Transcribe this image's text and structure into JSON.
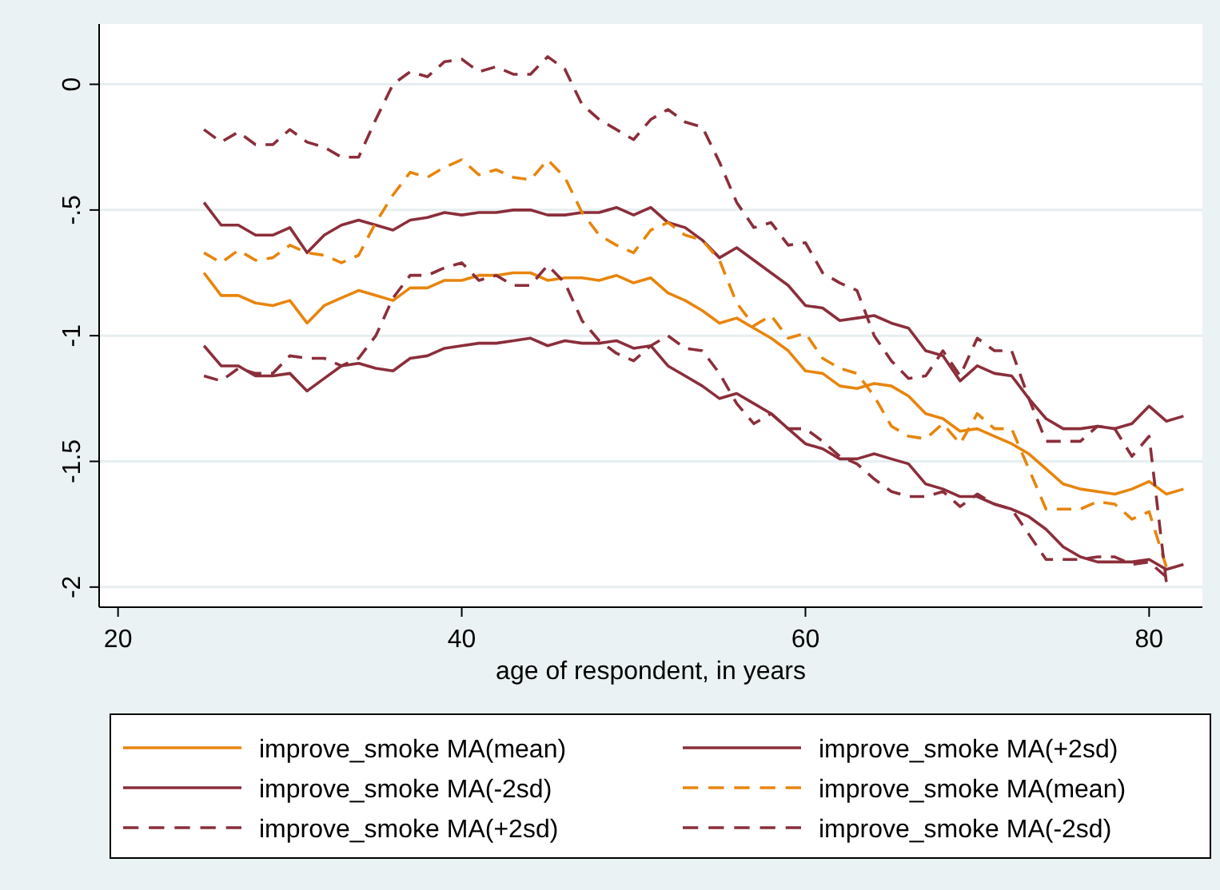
{
  "chart_data": {
    "type": "line",
    "xlabel": "age of respondent, in years",
    "xlim": [
      18.9,
      83.1
    ],
    "ylim": [
      -2.08,
      0.24
    ],
    "xticks": [
      20,
      40,
      60,
      80
    ],
    "yticks": [
      {
        "value": -2,
        "label": "-2"
      },
      {
        "value": -1.5,
        "label": "-1.5"
      },
      {
        "value": -1,
        "label": "-1"
      },
      {
        "value": -0.5,
        "label": "-.5"
      },
      {
        "value": 0,
        "label": "0"
      }
    ],
    "grid": "y",
    "legend": "bottom",
    "marker": "none",
    "x": [
      25,
      26,
      27,
      28,
      29,
      30,
      31,
      32,
      33,
      34,
      35,
      36,
      37,
      38,
      39,
      40,
      41,
      42,
      43,
      44,
      45,
      46,
      47,
      48,
      49,
      50,
      51,
      52,
      53,
      54,
      55,
      56,
      57,
      58,
      59,
      60,
      61,
      62,
      63,
      64,
      65,
      66,
      67,
      68,
      69,
      70,
      71,
      72,
      73,
      74,
      75,
      76,
      77,
      78,
      79,
      80,
      81,
      82
    ],
    "series": [
      {
        "name": "improve_smoke MA(mean)",
        "color": "#e8850c",
        "line_style": "solid",
        "values": [
          -0.75,
          -0.84,
          -0.84,
          -0.87,
          -0.88,
          -0.86,
          -0.95,
          -0.88,
          -0.85,
          -0.82,
          -0.84,
          -0.86,
          -0.81,
          -0.81,
          -0.78,
          -0.78,
          -0.76,
          -0.76,
          -0.75,
          -0.75,
          -0.78,
          -0.77,
          -0.77,
          -0.78,
          -0.76,
          -0.79,
          -0.77,
          -0.83,
          -0.86,
          -0.9,
          -0.95,
          -0.93,
          -0.97,
          -1.01,
          -1.06,
          -1.14,
          -1.15,
          -1.2,
          -1.21,
          -1.19,
          -1.2,
          -1.24,
          -1.31,
          -1.33,
          -1.38,
          -1.37,
          -1.4,
          -1.43,
          -1.47,
          -1.53,
          -1.59,
          -1.61,
          -1.62,
          -1.63,
          -1.61,
          -1.58,
          -1.63,
          -1.61
        ]
      },
      {
        "name": "improve_smoke MA(+2sd)",
        "color": "#8b2e3a",
        "line_style": "solid",
        "values": [
          -0.47,
          -0.56,
          -0.56,
          -0.6,
          -0.6,
          -0.57,
          -0.67,
          -0.6,
          -0.56,
          -0.54,
          -0.56,
          -0.58,
          -0.54,
          -0.53,
          -0.51,
          -0.52,
          -0.51,
          -0.51,
          -0.5,
          -0.5,
          -0.52,
          -0.52,
          -0.51,
          -0.51,
          -0.49,
          -0.52,
          -0.49,
          -0.55,
          -0.57,
          -0.62,
          -0.69,
          -0.65,
          -0.7,
          -0.75,
          -0.8,
          -0.88,
          -0.89,
          -0.94,
          -0.93,
          -0.92,
          -0.95,
          -0.97,
          -1.06,
          -1.08,
          -1.18,
          -1.12,
          -1.15,
          -1.16,
          -1.25,
          -1.33,
          -1.37,
          -1.37,
          -1.36,
          -1.37,
          -1.35,
          -1.28,
          -1.34,
          -1.32
        ]
      },
      {
        "name": "improve_smoke MA(-2sd)",
        "color": "#8b2e3a",
        "line_style": "solid",
        "values": [
          -1.04,
          -1.12,
          -1.12,
          -1.16,
          -1.16,
          -1.15,
          -1.22,
          -1.17,
          -1.12,
          -1.11,
          -1.13,
          -1.14,
          -1.09,
          -1.08,
          -1.05,
          -1.04,
          -1.03,
          -1.03,
          -1.02,
          -1.01,
          -1.04,
          -1.02,
          -1.03,
          -1.03,
          -1.02,
          -1.05,
          -1.04,
          -1.12,
          -1.16,
          -1.2,
          -1.25,
          -1.23,
          -1.27,
          -1.31,
          -1.37,
          -1.43,
          -1.45,
          -1.49,
          -1.49,
          -1.47,
          -1.49,
          -1.51,
          -1.59,
          -1.61,
          -1.64,
          -1.64,
          -1.67,
          -1.69,
          -1.72,
          -1.77,
          -1.84,
          -1.88,
          -1.9,
          -1.9,
          -1.9,
          -1.89,
          -1.93,
          -1.91
        ]
      },
      {
        "name": "improve_smoke MA(mean)",
        "color": "#e8850c",
        "line_style": "dashed",
        "values": [
          -0.67,
          -0.71,
          -0.66,
          -0.7,
          -0.69,
          -0.64,
          -0.67,
          -0.68,
          -0.71,
          -0.68,
          -0.55,
          -0.44,
          -0.35,
          -0.37,
          -0.33,
          -0.3,
          -0.36,
          -0.34,
          -0.37,
          -0.38,
          -0.3,
          -0.37,
          -0.51,
          -0.6,
          -0.64,
          -0.67,
          -0.58,
          -0.55,
          -0.6,
          -0.62,
          -0.7,
          -0.87,
          -0.96,
          -0.92,
          -1.01,
          -0.99,
          -1.09,
          -1.13,
          -1.15,
          -1.24,
          -1.36,
          -1.4,
          -1.41,
          -1.35,
          -1.43,
          -1.31,
          -1.37,
          -1.37,
          -1.53,
          -1.69,
          -1.69,
          -1.69,
          -1.66,
          -1.67,
          -1.73,
          -1.7,
          -1.92,
          null
        ]
      },
      {
        "name": "improve_smoke MA(+2sd)",
        "color": "#8b2e3a",
        "line_style": "dashed",
        "values": [
          -0.18,
          -0.23,
          -0.19,
          -0.24,
          -0.24,
          -0.18,
          -0.23,
          -0.25,
          -0.29,
          -0.29,
          -0.14,
          0,
          0.05,
          0.03,
          0.09,
          0.1,
          0.05,
          0.07,
          0.04,
          0.04,
          0.11,
          0.06,
          -0.08,
          -0.14,
          -0.18,
          -0.22,
          -0.14,
          -0.1,
          -0.15,
          -0.17,
          -0.31,
          -0.47,
          -0.57,
          -0.55,
          -0.64,
          -0.63,
          -0.75,
          -0.79,
          -0.82,
          -1,
          -1.1,
          -1.17,
          -1.16,
          -1.06,
          -1.16,
          -1.01,
          -1.06,
          -1.06,
          -1.25,
          -1.42,
          -1.42,
          -1.42,
          -1.36,
          -1.37,
          -1.48,
          -1.4,
          -1.98,
          null
        ]
      },
      {
        "name": "improve_smoke MA(-2sd)",
        "color": "#8b2e3a",
        "line_style": "dashed",
        "values": [
          -1.16,
          -1.18,
          -1.13,
          -1.15,
          -1.15,
          -1.08,
          -1.09,
          -1.09,
          -1.12,
          -1.09,
          -1,
          -0.85,
          -0.76,
          -0.76,
          -0.73,
          -0.71,
          -0.78,
          -0.76,
          -0.8,
          -0.8,
          -0.72,
          -0.79,
          -0.94,
          -1.02,
          -1.07,
          -1.1,
          -1.04,
          -1,
          -1.05,
          -1.06,
          -1.15,
          -1.27,
          -1.35,
          -1.31,
          -1.37,
          -1.37,
          -1.42,
          -1.48,
          -1.51,
          -1.57,
          -1.62,
          -1.64,
          -1.64,
          -1.62,
          -1.68,
          -1.63,
          -1.67,
          -1.69,
          -1.79,
          -1.89,
          -1.89,
          -1.89,
          -1.88,
          -1.88,
          -1.91,
          -1.9,
          -1.96,
          null
        ]
      }
    ]
  }
}
